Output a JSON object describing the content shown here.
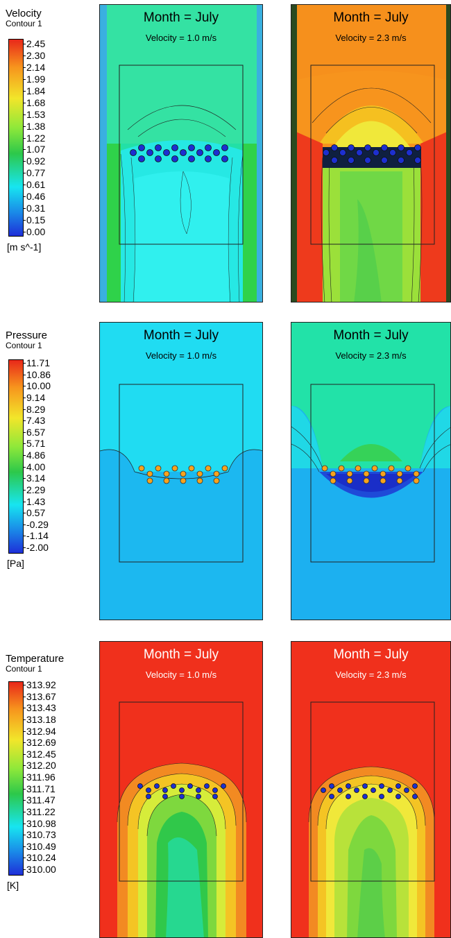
{
  "velocity": {
    "legend_title": "Velocity",
    "legend_subtitle": "Contour 1",
    "unit": "[m s^-1]",
    "ticks": [
      "2.45",
      "2.30",
      "2.14",
      "1.99",
      "1.84",
      "1.68",
      "1.53",
      "1.38",
      "1.22",
      "1.07",
      "0.92",
      "0.77",
      "0.61",
      "0.46",
      "0.31",
      "0.15",
      "0.00"
    ],
    "panels": [
      {
        "title": "Month = July",
        "subtitle": "Velocity = 1.0 m/s"
      },
      {
        "title": "Month = July",
        "subtitle": "Velocity = 2.3 m/s"
      }
    ]
  },
  "pressure": {
    "legend_title": "Pressure",
    "legend_subtitle": "Contour 1",
    "unit": "[Pa]",
    "ticks": [
      "11.71",
      "10.86",
      "10.00",
      "9.14",
      "8.29",
      "7.43",
      "6.57",
      "5.71",
      "4.86",
      "4.00",
      "3.14",
      "2.29",
      "1.43",
      "0.57",
      "-0.29",
      "-1.14",
      "-2.00"
    ],
    "panels": [
      {
        "title": "Month = July",
        "subtitle": "Velocity = 1.0 m/s"
      },
      {
        "title": "Month = July",
        "subtitle": "Velocity = 2.3 m/s"
      }
    ]
  },
  "temperature": {
    "legend_title": "Temperature",
    "legend_subtitle": "Contour 1",
    "unit": "[K]",
    "ticks": [
      "313.92",
      "313.67",
      "313.43",
      "313.18",
      "312.94",
      "312.69",
      "312.45",
      "312.20",
      "311.96",
      "311.71",
      "311.47",
      "311.22",
      "310.98",
      "310.73",
      "310.49",
      "310.24",
      "310.00"
    ],
    "panels": [
      {
        "title": "Month = July",
        "subtitle": "Velocity = 1.0 m/s"
      },
      {
        "title": "Month = July",
        "subtitle": "Velocity = 2.3 m/s"
      }
    ]
  },
  "colors": {
    "scale_top": "#e8281a",
    "scale_orange": "#f7941d",
    "scale_yellow": "#f2e62a",
    "scale_green": "#2dc84a",
    "scale_cyan": "#17e5f0",
    "scale_bottom": "#1e2fd8"
  }
}
